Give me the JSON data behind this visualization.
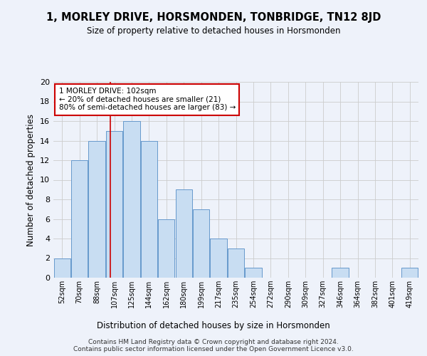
{
  "title": "1, MORLEY DRIVE, HORSMONDEN, TONBRIDGE, TN12 8JD",
  "subtitle": "Size of property relative to detached houses in Horsmonden",
  "xlabel": "Distribution of detached houses by size in Horsmonden",
  "ylabel": "Number of detached properties",
  "bin_labels": [
    "52sqm",
    "70sqm",
    "88sqm",
    "107sqm",
    "125sqm",
    "144sqm",
    "162sqm",
    "180sqm",
    "199sqm",
    "217sqm",
    "235sqm",
    "254sqm",
    "272sqm",
    "290sqm",
    "309sqm",
    "327sqm",
    "346sqm",
    "364sqm",
    "382sqm",
    "401sqm",
    "419sqm"
  ],
  "bar_heights": [
    2,
    12,
    14,
    15,
    16,
    14,
    6,
    9,
    7,
    4,
    3,
    1,
    0,
    0,
    0,
    0,
    1,
    0,
    0,
    0,
    1
  ],
  "bar_color": "#c8ddf2",
  "bar_edge_color": "#6699cc",
  "vline_color": "#cc0000",
  "annotation_box_color": "#ffffff",
  "annotation_box_edge_color": "#cc0000",
  "annotation_text": "1 MORLEY DRIVE: 102sqm\n← 20% of detached houses are smaller (21)\n80% of semi-detached houses are larger (83) →",
  "grid_color": "#cccccc",
  "background_color": "#eef2fa",
  "plot_bg_color": "#eef2fa",
  "ylim": [
    0,
    20
  ],
  "yticks": [
    0,
    2,
    4,
    6,
    8,
    10,
    12,
    14,
    16,
    18,
    20
  ],
  "footer_text": "Contains HM Land Registry data © Crown copyright and database right 2024.\nContains public sector information licensed under the Open Government Licence v3.0."
}
